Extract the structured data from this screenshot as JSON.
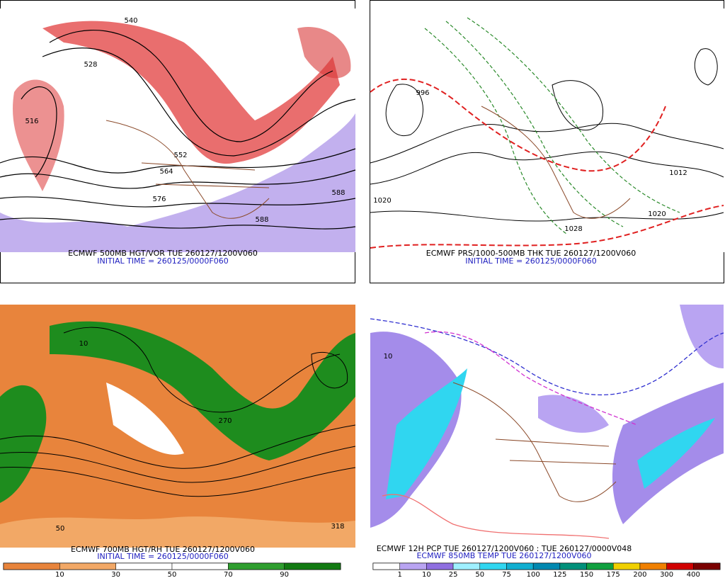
{
  "panels": [
    {
      "caption": "ECMWF 500MB HGT/VOR TUE 260127/1200V060",
      "init": "INITIAL TIME = 260125/0000F060",
      "labels": [
        "540",
        "528",
        "516",
        "552",
        "564",
        "576",
        "588",
        "588"
      ]
    },
    {
      "caption": "ECMWF PRS/1000-500MB THK TUE 260127/1200V060",
      "init": "INITIAL TIME = 260125/0000F060",
      "labels": [
        "1020",
        "996",
        "1012",
        "1020",
        "1028"
      ]
    },
    {
      "caption": "ECMWF 700MB HGT/RH TUE 260127/1200V060",
      "init": "INITIAL TIME = 260125/0000F060",
      "labels": [
        "270",
        "10",
        "50",
        "318"
      ],
      "colorbar": {
        "labels": [
          10,
          30,
          50,
          70,
          90
        ],
        "colors": [
          "#e8843c",
          "#f2a866",
          "#ffffff",
          "#ffffff",
          "#2f9e2f",
          "#127a12"
        ]
      }
    },
    {
      "caption": "ECMWF 12H PCP TUE 260127/1200V060 : TUE 260127/0000V048",
      "init": "ECMWF 850MB TEMP TUE 260127/1200V060",
      "labels": [
        "10"
      ],
      "colorbar": {
        "labels": [
          1,
          10,
          25,
          50,
          75,
          100,
          125,
          150,
          175,
          200,
          300,
          400
        ],
        "colors": [
          "#ffffff",
          "#b9a4f2",
          "#8f6fe0",
          "#9ff0ff",
          "#30d6f0",
          "#10aed0",
          "#0088b0",
          "#00907a",
          "#10a040",
          "#f0d000",
          "#f08000",
          "#d00000",
          "#7a0000"
        ]
      }
    }
  ]
}
